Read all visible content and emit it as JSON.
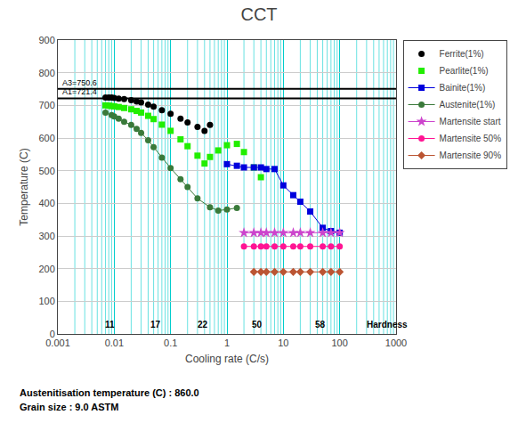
{
  "chart_data": {
    "type": "scatter",
    "title": "CCT",
    "x_label": "Cooling rate (C/s)",
    "y_label": "Temperature (C)",
    "log": "x",
    "xlim": [
      0.001,
      1000
    ],
    "ylim": [
      0,
      900
    ],
    "xticks": [
      0.001,
      0.01,
      0.1,
      1,
      10,
      100,
      1000
    ],
    "yticks": [
      0,
      100,
      200,
      300,
      400,
      500,
      600,
      700,
      800,
      900
    ],
    "grid": true,
    "legend": "right",
    "series": [
      {
        "name": "Ferrite(1%)",
        "color": "#000000",
        "marker": "circle",
        "line_style": "none",
        "x": [
          0.007,
          0.008,
          0.009,
          0.01,
          0.012,
          0.015,
          0.02,
          0.025,
          0.03,
          0.04,
          0.05,
          0.07,
          0.1,
          0.15,
          0.2,
          0.3,
          0.4,
          0.5
        ],
        "values": [
          724,
          724,
          724,
          723,
          721,
          719,
          716,
          712,
          709,
          702,
          696,
          685,
          674,
          659,
          648,
          634,
          622,
          640
        ]
      },
      {
        "name": "Pearlite(1%)",
        "color": "#22ee00",
        "marker": "square",
        "line_style": "none",
        "x": [
          0.007,
          0.008,
          0.009,
          0.01,
          0.012,
          0.015,
          0.02,
          0.025,
          0.03,
          0.04,
          0.05,
          0.07,
          0.1,
          0.15,
          0.2,
          0.3,
          0.4,
          0.5,
          0.7,
          1.0,
          1.5,
          2.0,
          3.0,
          4.0
        ],
        "values": [
          700,
          699,
          698,
          697,
          695,
          692,
          688,
          683,
          678,
          668,
          658,
          641,
          622,
          596,
          575,
          546,
          522,
          542,
          562,
          578,
          582,
          557,
          510,
          480
        ]
      },
      {
        "name": "Bainite(1%)",
        "color": "#0000DD",
        "marker": "square",
        "line_style": "solid",
        "x": [
          1.0,
          1.5,
          2.0,
          3.0,
          4.0,
          5.0,
          7.0,
          10,
          15,
          20,
          30,
          50,
          70,
          100
        ],
        "values": [
          520,
          515,
          510,
          510,
          510,
          505,
          505,
          455,
          425,
          405,
          375,
          325,
          315,
          310
        ]
      },
      {
        "name": "Austenite(1%)",
        "color": "#3a7a3a",
        "marker": "circle",
        "line_style": "solid",
        "x": [
          0.007,
          0.009,
          0.01,
          0.012,
          0.015,
          0.02,
          0.025,
          0.03,
          0.04,
          0.05,
          0.07,
          0.1,
          0.15,
          0.2,
          0.3,
          0.5,
          0.7,
          1.0,
          1.5
        ],
        "values": [
          678,
          670,
          666,
          659,
          650,
          640,
          628,
          616,
          593,
          572,
          540,
          508,
          474,
          450,
          415,
          388,
          378,
          381,
          386
        ]
      },
      {
        "name": "Martensite start",
        "color": "#CC44CC",
        "marker": "star",
        "line_style": "solid",
        "x": [
          2.0,
          3.0,
          4.0,
          5.0,
          7.0,
          10,
          15,
          20,
          30,
          50,
          70,
          100
        ],
        "values": [
          310,
          310,
          310,
          310,
          310,
          310,
          310,
          310,
          310,
          310,
          310,
          310
        ]
      },
      {
        "name": "Martensite 50%",
        "color": "#FF1493",
        "marker": "circle",
        "line_style": "solid",
        "x": [
          2.0,
          3.0,
          4.0,
          5.0,
          7.0,
          10,
          15,
          20,
          30,
          50,
          70,
          100
        ],
        "values": [
          268,
          268,
          268,
          268,
          268,
          268,
          268,
          268,
          268,
          268,
          268,
          268
        ]
      },
      {
        "name": "Martensite 90%",
        "color": "#BB5533",
        "marker": "diamond",
        "line_style": "solid",
        "x": [
          3.0,
          4.0,
          5.0,
          7.0,
          10,
          15,
          20,
          30,
          50,
          70,
          100
        ],
        "values": [
          190,
          190,
          190,
          190,
          190,
          190,
          190,
          190,
          190,
          190,
          190
        ]
      }
    ],
    "hlines": [
      {
        "label": "A3=750.6",
        "y": 750.6
      },
      {
        "label": "A1=721.4",
        "y": 721.4
      }
    ],
    "annotations": [
      {
        "text": "11",
        "x": 0.0085
      },
      {
        "text": "17",
        "x": 0.055
      },
      {
        "text": "22",
        "x": 0.38
      },
      {
        "text": "50",
        "x": 3.5
      },
      {
        "text": "58",
        "x": 45
      },
      {
        "text": "Hardness",
        "x": 700
      }
    ],
    "footnotes": [
      "Austenitisation temperature (C) : 860.0",
      "Grain size : 9.0 ASTM"
    ]
  }
}
